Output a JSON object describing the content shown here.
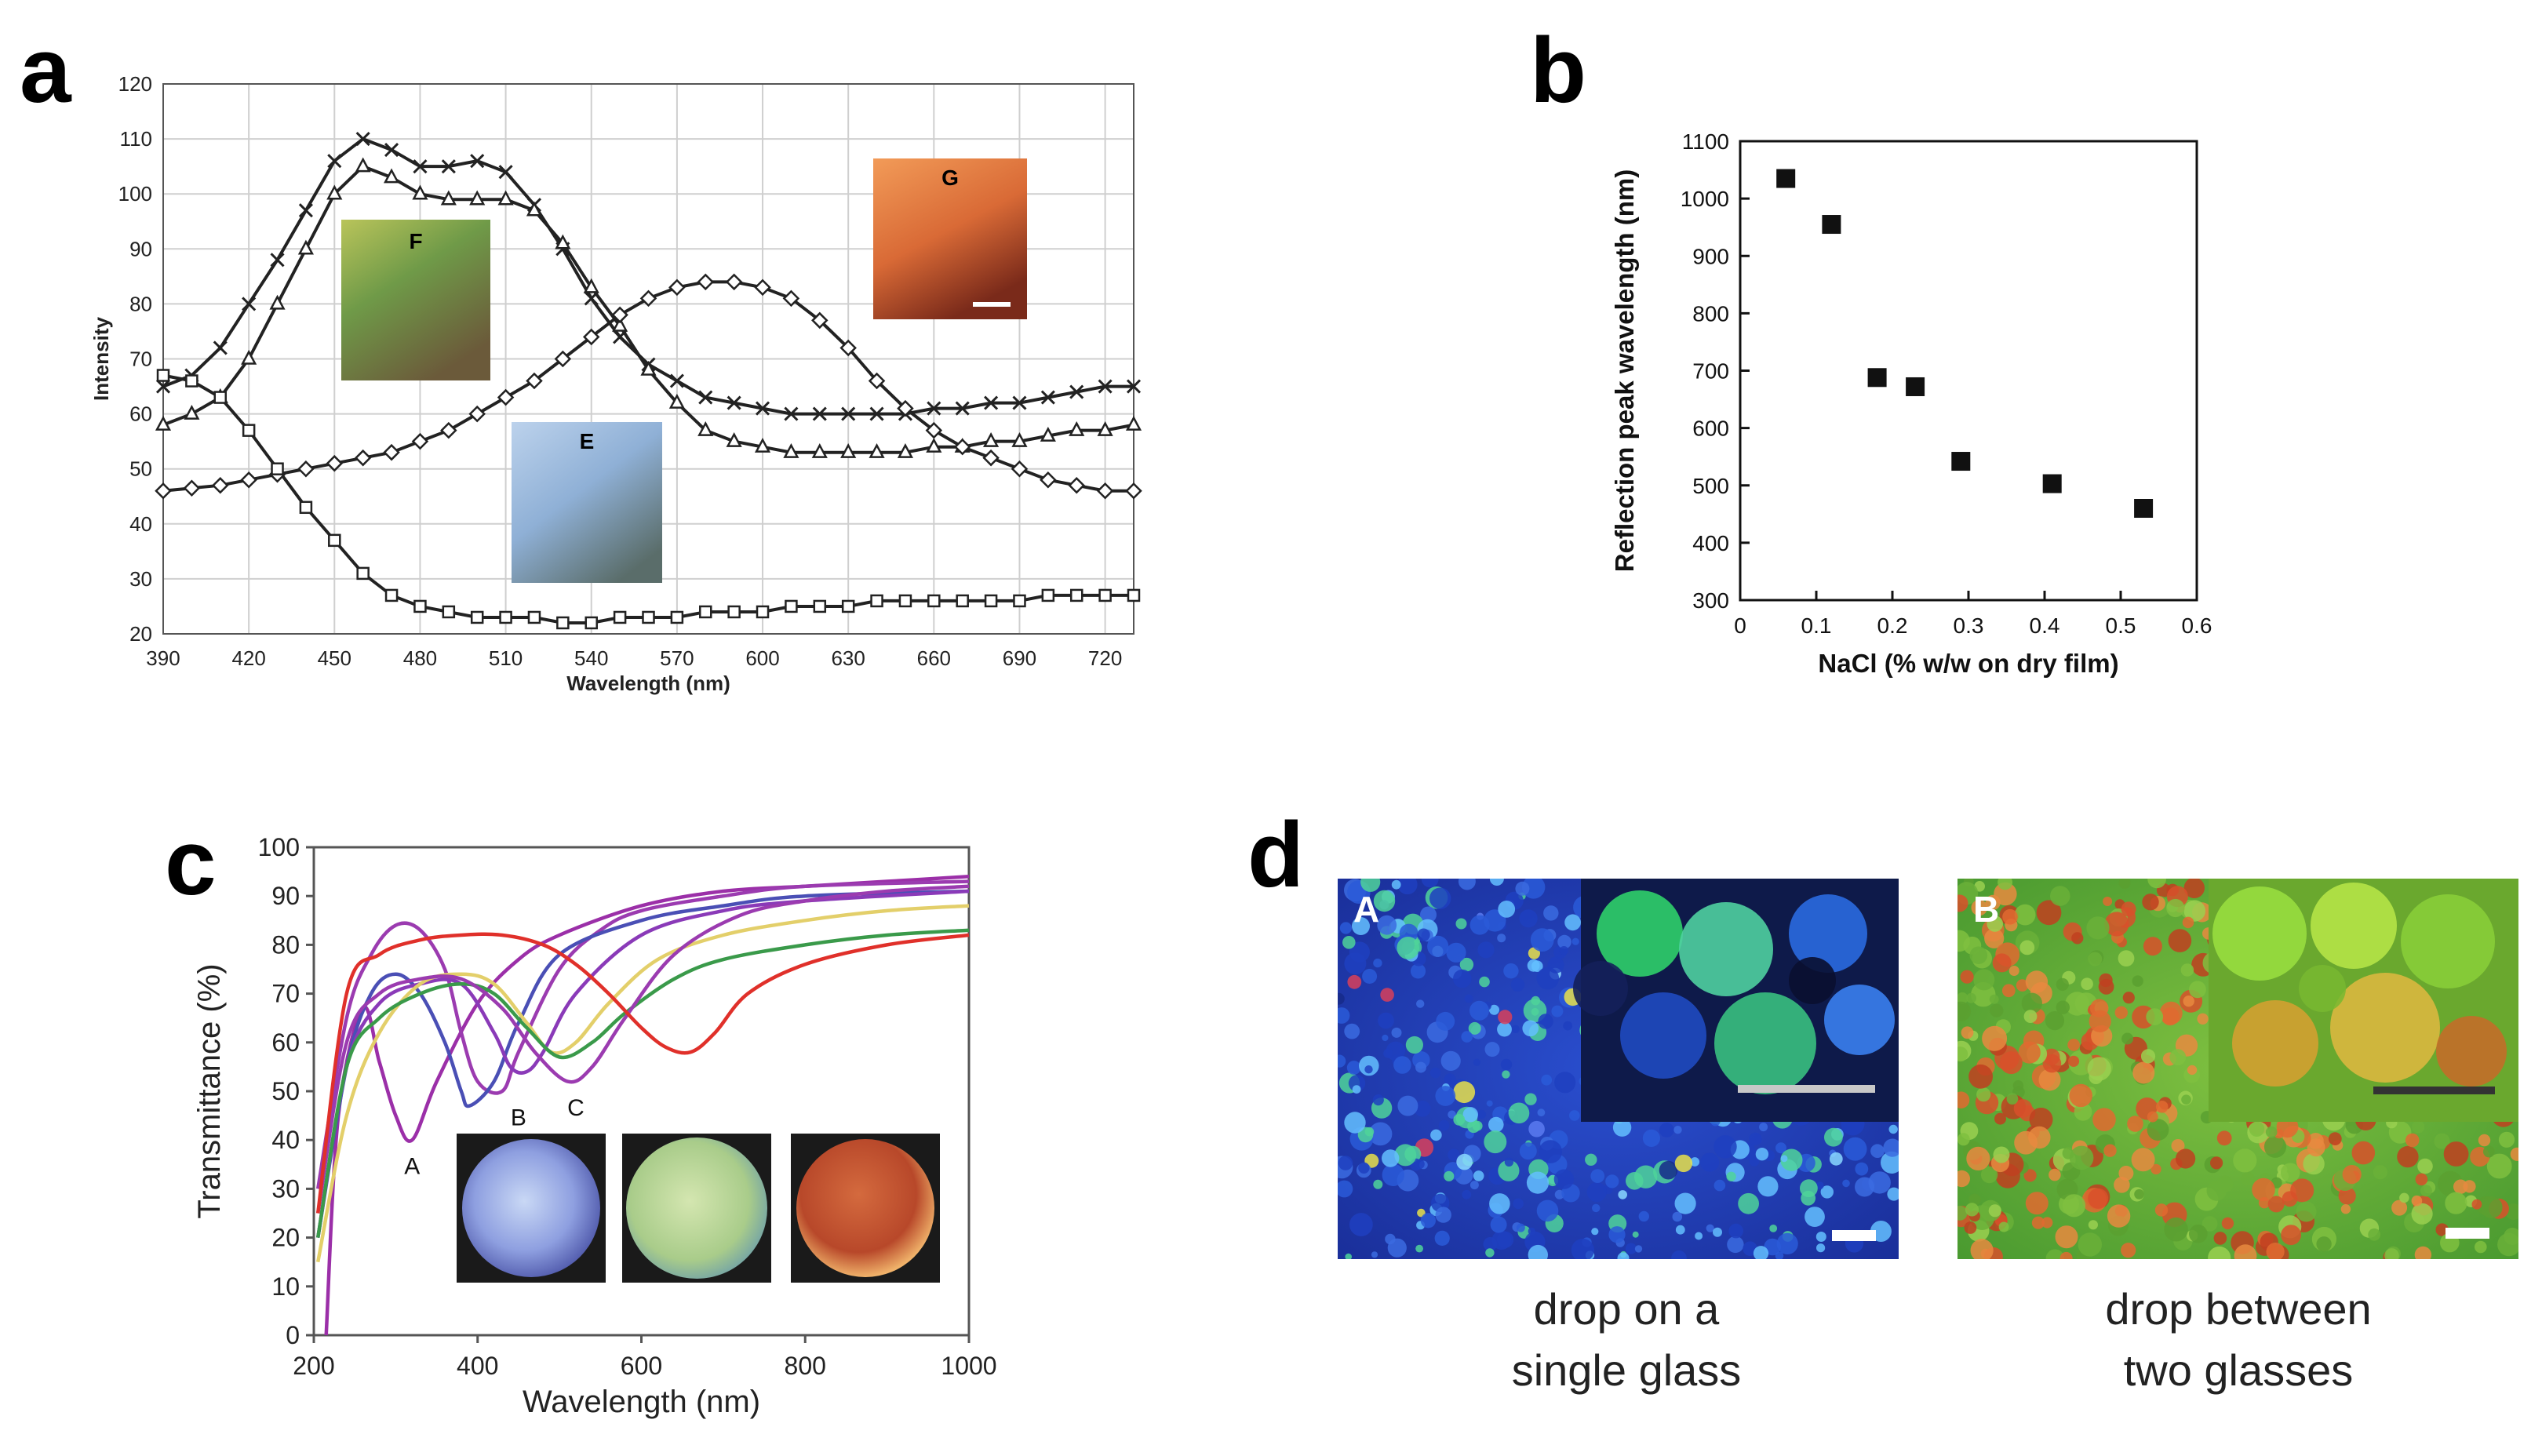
{
  "panels": {
    "a": {
      "letter": "a"
    },
    "b": {
      "letter": "b"
    },
    "c": {
      "letter": "c"
    },
    "d": {
      "letter": "d",
      "photo_A_label": "A",
      "photo_B_label": "B",
      "caption_A_line1": "drop on a",
      "caption_A_line2": "single glass",
      "caption_B_line1": "drop between",
      "caption_B_line2": "two glasses"
    }
  },
  "chart_data": [
    {
      "panel": "a",
      "type": "line",
      "title": "",
      "xlabel": "Wavelength (nm)",
      "ylabel": "Intensity",
      "xlim": [
        390,
        730
      ],
      "ylim": [
        20,
        120
      ],
      "xticks": [
        390,
        420,
        450,
        480,
        510,
        540,
        570,
        600,
        630,
        660,
        690,
        720
      ],
      "yticks": [
        20,
        30,
        40,
        50,
        60,
        70,
        80,
        90,
        100,
        110,
        120
      ],
      "grid": true,
      "x": [
        390,
        400,
        410,
        420,
        430,
        440,
        450,
        460,
        470,
        480,
        490,
        500,
        510,
        520,
        530,
        540,
        550,
        560,
        570,
        580,
        590,
        600,
        610,
        620,
        630,
        640,
        650,
        660,
        670,
        680,
        690,
        700,
        710,
        720,
        730
      ],
      "series": [
        {
          "name": "x-marker",
          "marker": "x",
          "values": [
            65,
            67,
            72,
            80,
            88,
            97,
            106,
            110,
            108,
            105,
            105,
            106,
            104,
            98,
            90,
            81,
            74,
            69,
            66,
            63,
            62,
            61,
            60,
            60,
            60,
            60,
            60,
            61,
            61,
            62,
            62,
            63,
            64,
            65,
            65
          ]
        },
        {
          "name": "triangle-marker",
          "marker": "triangle",
          "values": [
            58,
            60,
            63,
            70,
            80,
            90,
            100,
            105,
            103,
            100,
            99,
            99,
            99,
            97,
            91,
            83,
            76,
            68,
            62,
            57,
            55,
            54,
            53,
            53,
            53,
            53,
            53,
            54,
            54,
            55,
            55,
            56,
            57,
            57,
            58
          ]
        },
        {
          "name": "diamond-marker",
          "marker": "diamond",
          "values": [
            46,
            46.5,
            47,
            48,
            49,
            50,
            51,
            52,
            53,
            55,
            57,
            60,
            63,
            66,
            70,
            74,
            78,
            81,
            83,
            84,
            84,
            83,
            81,
            77,
            72,
            66,
            61,
            57,
            54,
            52,
            50,
            48,
            47,
            46,
            46
          ]
        },
        {
          "name": "square-marker",
          "marker": "square",
          "values": [
            67,
            66,
            63,
            57,
            50,
            43,
            37,
            31,
            27,
            25,
            24,
            23,
            23,
            23,
            22,
            22,
            23,
            23,
            23,
            24,
            24,
            24,
            25,
            25,
            25,
            26,
            26,
            26,
            26,
            26,
            26,
            27,
            27,
            27,
            27
          ]
        }
      ],
      "insets": [
        {
          "label": "F",
          "color_top": "#9fb34a",
          "color_bottom": "#5e7a3c"
        },
        {
          "label": "E",
          "color_top": "#a9c4e0",
          "color_bottom": "#6f8fb5"
        },
        {
          "label": "G",
          "color_top": "#e8884a",
          "color_bottom": "#b04a22"
        }
      ]
    },
    {
      "panel": "b",
      "type": "scatter",
      "title": "",
      "xlabel": "NaCl (% w/w on dry film)",
      "ylabel": "Reflection peak wavelength (nm)",
      "xlim": [
        0,
        0.6
      ],
      "ylim": [
        300,
        1100
      ],
      "xticks": [
        0,
        0.1,
        0.2,
        0.3,
        0.4,
        0.5,
        0.6
      ],
      "xtick_labels": [
        "0",
        "0.1",
        "0.2",
        "0.3",
        "0.4",
        "0.5",
        "0.6"
      ],
      "yticks": [
        300,
        400,
        500,
        600,
        700,
        800,
        900,
        1000,
        1100
      ],
      "grid": false,
      "points": [
        {
          "x": 0.06,
          "y": 1035
        },
        {
          "x": 0.12,
          "y": 955
        },
        {
          "x": 0.18,
          "y": 688
        },
        {
          "x": 0.23,
          "y": 672
        },
        {
          "x": 0.29,
          "y": 542
        },
        {
          "x": 0.41,
          "y": 503
        },
        {
          "x": 0.53,
          "y": 460
        }
      ]
    },
    {
      "panel": "c",
      "type": "line",
      "title": "",
      "xlabel": "Wavelength (nm)",
      "ylabel": "Transmittance (%)",
      "xlim": [
        200,
        1000
      ],
      "ylim": [
        0,
        100
      ],
      "xticks": [
        200,
        400,
        600,
        800,
        1000
      ],
      "yticks": [
        0,
        10,
        20,
        30,
        40,
        50,
        60,
        70,
        80,
        90,
        100
      ],
      "grid": false,
      "series": [
        {
          "name": "A",
          "color": "#9b2fa8",
          "points": [
            [
              215,
              0
            ],
            [
              230,
              45
            ],
            [
              260,
              67
            ],
            [
              280,
              56
            ],
            [
              300,
              45
            ],
            [
              320,
              40
            ],
            [
              350,
              52
            ],
            [
              400,
              68
            ],
            [
              450,
              77
            ],
            [
              500,
              82
            ],
            [
              600,
              88
            ],
            [
              700,
              91
            ],
            [
              800,
              92
            ],
            [
              900,
              93
            ],
            [
              1000,
              94
            ]
          ]
        },
        {
          "name": "violet",
          "color": "#9b3bb0",
          "points": [
            [
              205,
              30
            ],
            [
              240,
              65
            ],
            [
              270,
              78
            ],
            [
              300,
              84
            ],
            [
              330,
              83
            ],
            [
              360,
              75
            ],
            [
              380,
              62
            ],
            [
              400,
              52
            ],
            [
              430,
              50
            ],
            [
              450,
              58
            ],
            [
              500,
              75
            ],
            [
              550,
              83
            ],
            [
              600,
              87
            ],
            [
              700,
              90
            ],
            [
              800,
              92
            ],
            [
              1000,
              93
            ]
          ]
        },
        {
          "name": "blue",
          "color": "#4a4fb5",
          "points": [
            [
              205,
              20
            ],
            [
              240,
              55
            ],
            [
              270,
              70
            ],
            [
              300,
              74
            ],
            [
              330,
              70
            ],
            [
              360,
              60
            ],
            [
              380,
              50
            ],
            [
              390,
              47
            ],
            [
              420,
              52
            ],
            [
              450,
              64
            ],
            [
              500,
              78
            ],
            [
              600,
              85
            ],
            [
              700,
              88
            ],
            [
              800,
              90
            ],
            [
              1000,
              91
            ]
          ]
        },
        {
          "name": "B",
          "color": "#8a3ab8",
          "points": [
            [
              205,
              20
            ],
            [
              240,
              55
            ],
            [
              280,
              68
            ],
            [
              330,
              72
            ],
            [
              380,
              72
            ],
            [
              420,
              62
            ],
            [
              440,
              55
            ],
            [
              460,
              54
            ],
            [
              480,
              58
            ],
            [
              520,
              70
            ],
            [
              600,
              82
            ],
            [
              700,
              87
            ],
            [
              800,
              89
            ],
            [
              1000,
              91
            ]
          ]
        },
        {
          "name": "yellow",
          "color": "#e3cf6a",
          "points": [
            [
              205,
              15
            ],
            [
              240,
              45
            ],
            [
              280,
              62
            ],
            [
              330,
              72
            ],
            [
              380,
              74
            ],
            [
              420,
              72
            ],
            [
              460,
              64
            ],
            [
              490,
              58
            ],
            [
              520,
              60
            ],
            [
              560,
              68
            ],
            [
              620,
              77
            ],
            [
              700,
              82
            ],
            [
              800,
              85
            ],
            [
              900,
              87
            ],
            [
              1000,
              88
            ]
          ]
        },
        {
          "name": "green",
          "color": "#3a9a4a",
          "points": [
            [
              205,
              20
            ],
            [
              240,
              55
            ],
            [
              280,
              65
            ],
            [
              330,
              70
            ],
            [
              380,
              72
            ],
            [
              420,
              70
            ],
            [
              460,
              63
            ],
            [
              500,
              57
            ],
            [
              540,
              60
            ],
            [
              580,
              66
            ],
            [
              640,
              73
            ],
            [
              700,
              77
            ],
            [
              800,
              80
            ],
            [
              900,
              82
            ],
            [
              1000,
              83
            ]
          ]
        },
        {
          "name": "C",
          "color": "#9b3bb0",
          "points": [
            [
              205,
              25
            ],
            [
              240,
              60
            ],
            [
              280,
              70
            ],
            [
              330,
              73
            ],
            [
              380,
              73
            ],
            [
              430,
              67
            ],
            [
              470,
              58
            ],
            [
              510,
              52
            ],
            [
              540,
              55
            ],
            [
              580,
              65
            ],
            [
              640,
              78
            ],
            [
              720,
              86
            ],
            [
              800,
              89
            ],
            [
              900,
              91
            ],
            [
              1000,
              92
            ]
          ]
        },
        {
          "name": "red",
          "color": "#e0302a",
          "points": [
            [
              205,
              25
            ],
            [
              240,
              70
            ],
            [
              280,
              78
            ],
            [
              330,
              81
            ],
            [
              380,
              82
            ],
            [
              430,
              82
            ],
            [
              480,
              80
            ],
            [
              520,
              76
            ],
            [
              560,
              70
            ],
            [
              600,
              63
            ],
            [
              630,
              59
            ],
            [
              660,
              58
            ],
            [
              690,
              62
            ],
            [
              730,
              70
            ],
            [
              800,
              76
            ],
            [
              900,
              80
            ],
            [
              1000,
              82
            ]
          ]
        }
      ],
      "annotations": [
        {
          "text": "A",
          "x": 320,
          "y": 33
        },
        {
          "text": "B",
          "x": 450,
          "y": 43
        },
        {
          "text": "C",
          "x": 520,
          "y": 45
        }
      ]
    }
  ]
}
